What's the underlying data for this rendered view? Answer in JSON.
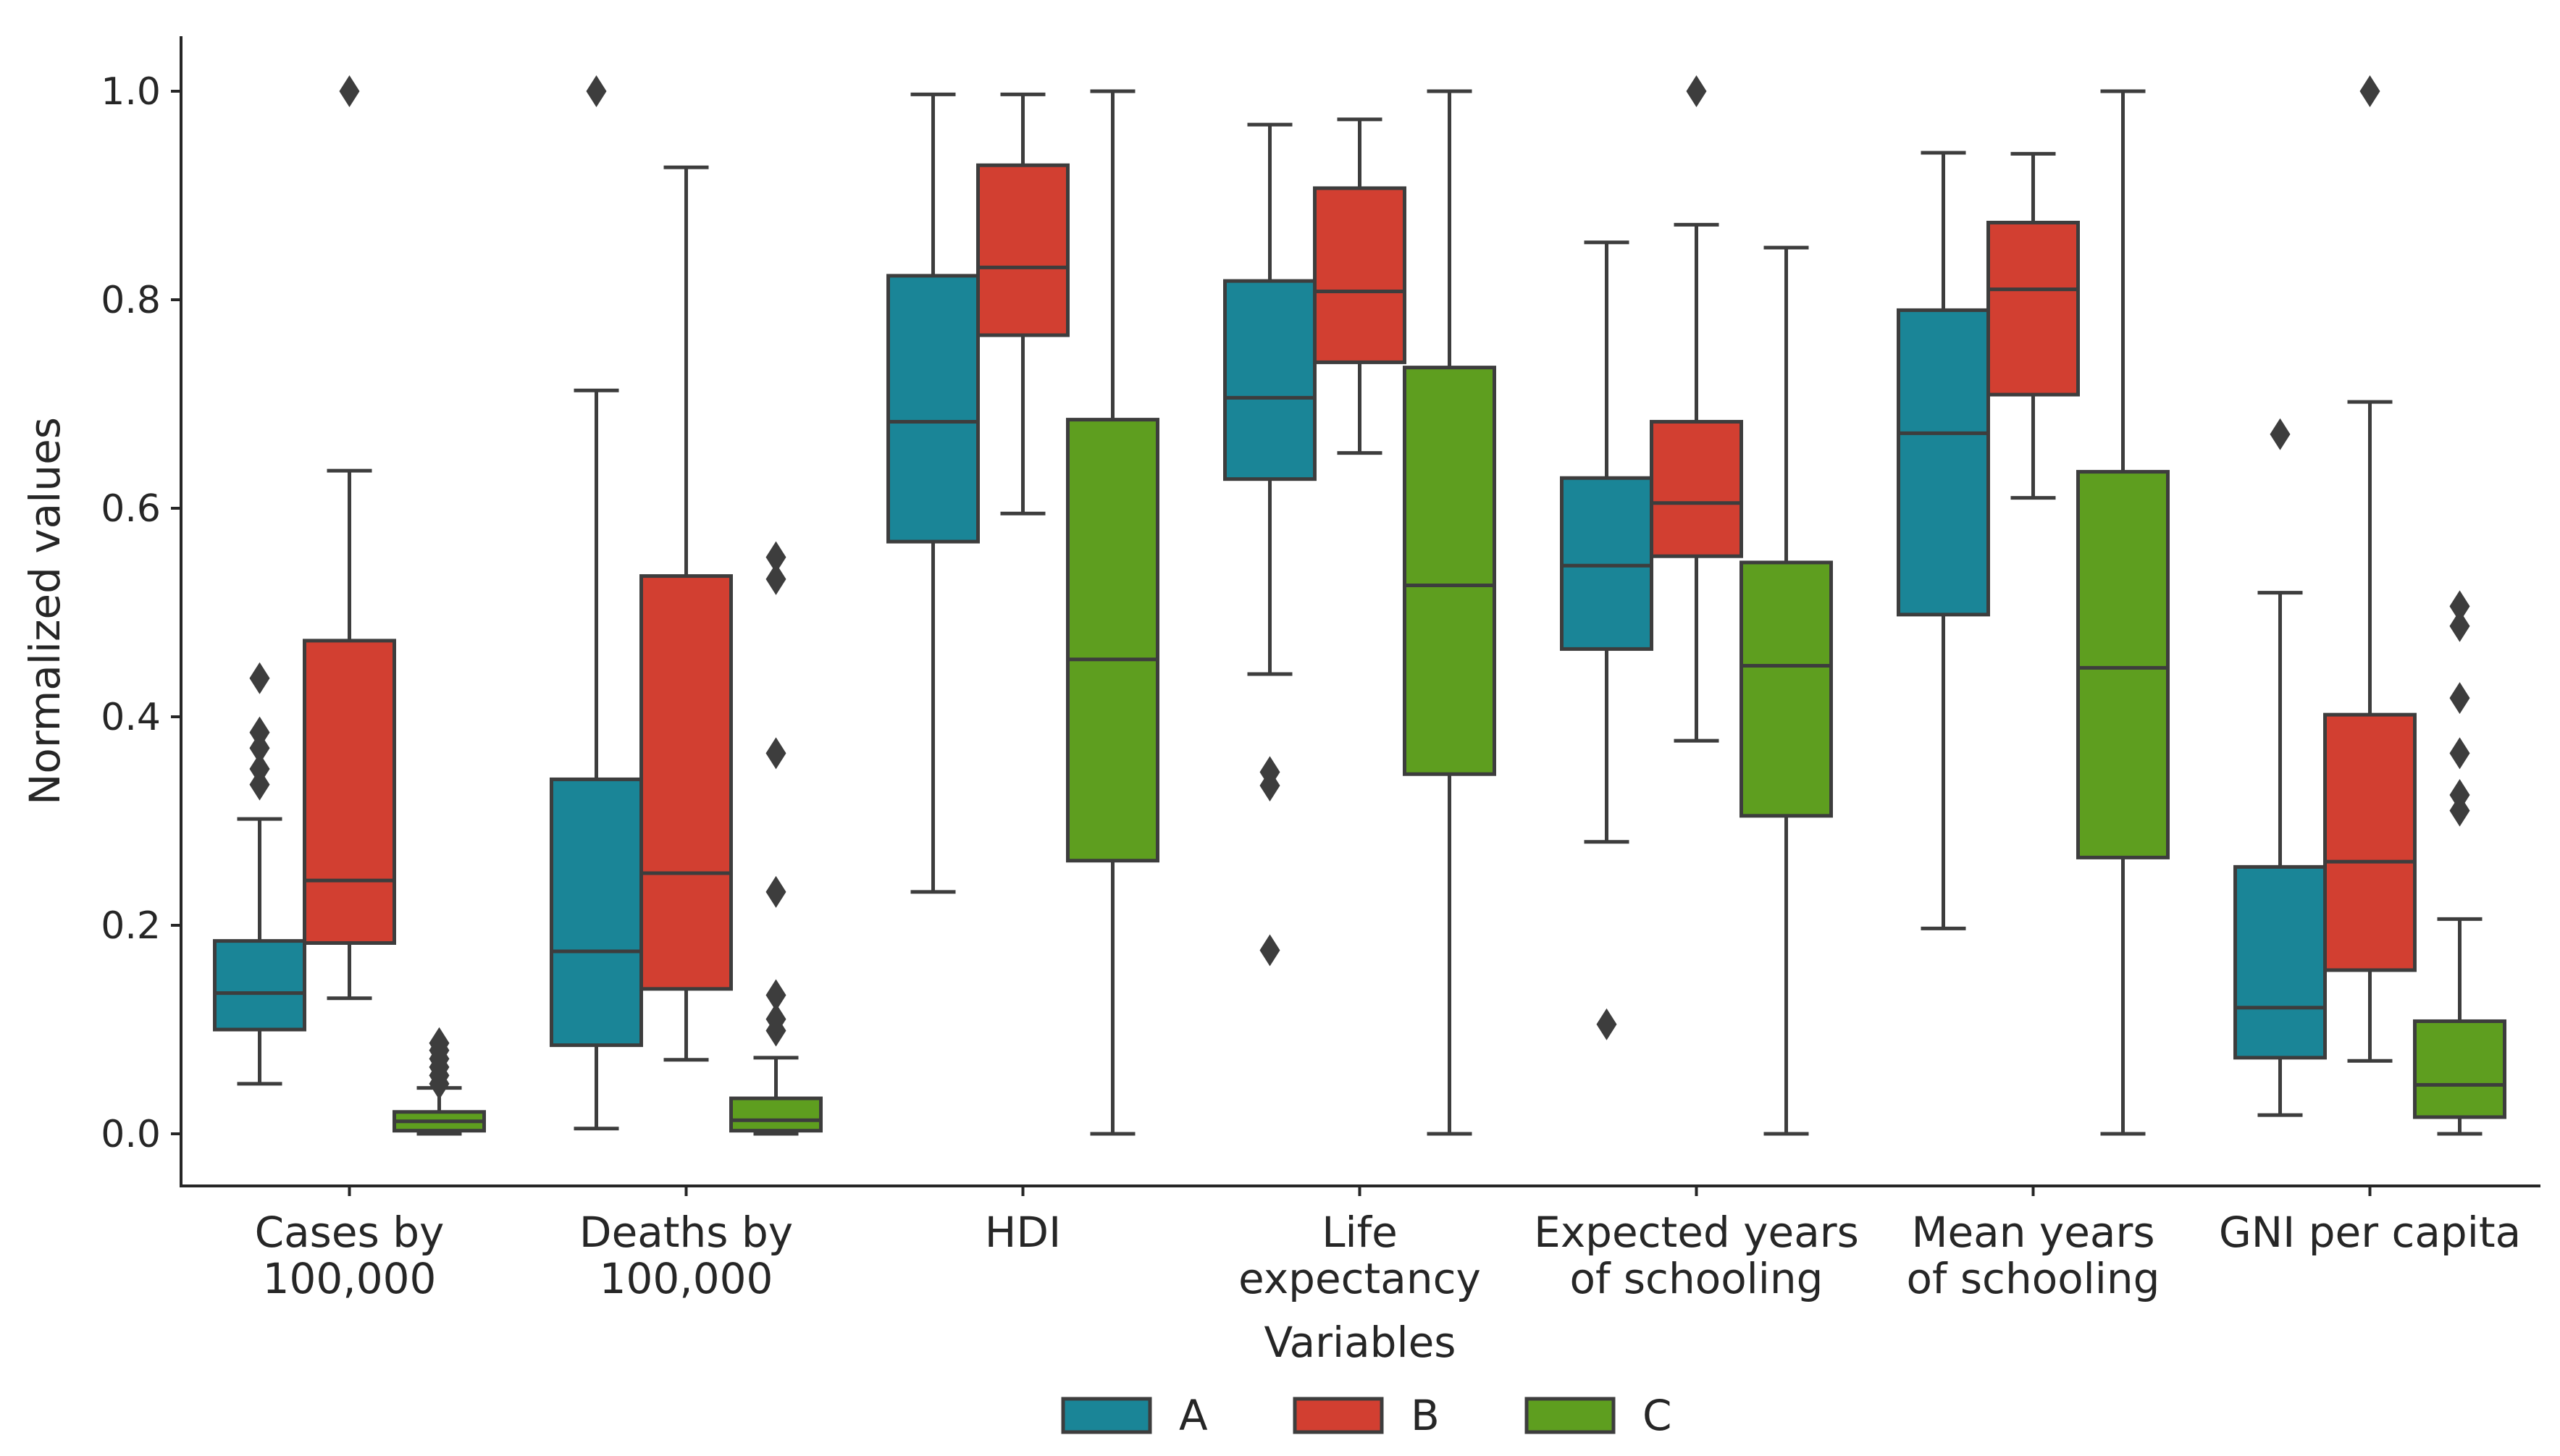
{
  "chart_data": {
    "type": "box",
    "ylabel": "Normalized values",
    "xlabel": "Variables",
    "ylim": [
      0.0,
      1.0
    ],
    "yticks": [
      0.0,
      0.2,
      0.4,
      0.6,
      0.8,
      1.0
    ],
    "ytick_labels": [
      "0.0",
      "0.2",
      "0.4",
      "0.6",
      "0.8",
      "1.0"
    ],
    "categories": [
      [
        "Cases by",
        "100,000"
      ],
      [
        "Deaths by",
        "100,000"
      ],
      [
        "HDI"
      ],
      [
        "Life",
        "expectancy"
      ],
      [
        "Expected years",
        "of schooling"
      ],
      [
        "Mean years",
        "of schooling"
      ],
      [
        "GNI per capita"
      ]
    ],
    "legend": {
      "placement": "bottom-center"
    },
    "series": [
      {
        "name": "A",
        "color": "#1a8597",
        "boxes": [
          {
            "whislo": 0.048,
            "q1": 0.1,
            "med": 0.135,
            "q3": 0.185,
            "whishi": 0.302,
            "fliers": [
              0.335,
              0.35,
              0.37,
              0.385,
              0.437
            ]
          },
          {
            "whislo": 0.005,
            "q1": 0.085,
            "med": 0.175,
            "q3": 0.34,
            "whishi": 0.713,
            "fliers": [
              1.0
            ]
          },
          {
            "whislo": 0.232,
            "q1": 0.568,
            "med": 0.683,
            "q3": 0.823,
            "whishi": 0.997,
            "fliers": []
          },
          {
            "whislo": 0.441,
            "q1": 0.628,
            "med": 0.706,
            "q3": 0.818,
            "whishi": 0.968,
            "fliers": [
              0.176,
              0.334,
              0.347
            ]
          },
          {
            "whislo": 0.28,
            "q1": 0.465,
            "med": 0.545,
            "q3": 0.629,
            "whishi": 0.855,
            "fliers": [
              0.105
            ]
          },
          {
            "whislo": 0.197,
            "q1": 0.498,
            "med": 0.672,
            "q3": 0.79,
            "whishi": 0.941,
            "fliers": []
          },
          {
            "whislo": 0.018,
            "q1": 0.073,
            "med": 0.121,
            "q3": 0.256,
            "whishi": 0.519,
            "fliers": [
              0.671
            ]
          }
        ]
      },
      {
        "name": "B",
        "color": "#d23f31",
        "boxes": [
          {
            "whislo": 0.13,
            "q1": 0.183,
            "med": 0.243,
            "q3": 0.473,
            "whishi": 0.636,
            "fliers": [
              1.0
            ]
          },
          {
            "whislo": 0.071,
            "q1": 0.139,
            "med": 0.25,
            "q3": 0.535,
            "whishi": 0.927,
            "fliers": []
          },
          {
            "whislo": 0.595,
            "q1": 0.766,
            "med": 0.831,
            "q3": 0.929,
            "whishi": 0.997,
            "fliers": []
          },
          {
            "whislo": 0.653,
            "q1": 0.74,
            "med": 0.808,
            "q3": 0.907,
            "whishi": 0.973,
            "fliers": []
          },
          {
            "whislo": 0.377,
            "q1": 0.554,
            "med": 0.605,
            "q3": 0.683,
            "whishi": 0.872,
            "fliers": [
              1.0
            ]
          },
          {
            "whislo": 0.61,
            "q1": 0.709,
            "med": 0.81,
            "q3": 0.874,
            "whishi": 0.94,
            "fliers": []
          },
          {
            "whislo": 0.07,
            "q1": 0.157,
            "med": 0.261,
            "q3": 0.402,
            "whishi": 0.702,
            "fliers": [
              1.0
            ]
          }
        ]
      },
      {
        "name": "C",
        "color": "#5e9e1f",
        "boxes": [
          {
            "whislo": 0.0,
            "q1": 0.003,
            "med": 0.012,
            "q3": 0.021,
            "whishi": 0.044,
            "fliers": [
              0.048,
              0.056,
              0.064,
              0.072,
              0.08,
              0.087
            ]
          },
          {
            "whislo": 0.0,
            "q1": 0.003,
            "med": 0.013,
            "q3": 0.034,
            "whishi": 0.073,
            "fliers": [
              0.099,
              0.11,
              0.133,
              0.232,
              0.365,
              0.532,
              0.553
            ]
          },
          {
            "whislo": 0.0,
            "q1": 0.262,
            "med": 0.455,
            "q3": 0.685,
            "whishi": 1.0,
            "fliers": []
          },
          {
            "whislo": 0.0,
            "q1": 0.345,
            "med": 0.526,
            "q3": 0.735,
            "whishi": 1.0,
            "fliers": []
          },
          {
            "whislo": 0.0,
            "q1": 0.305,
            "med": 0.449,
            "q3": 0.548,
            "whishi": 0.85,
            "fliers": []
          },
          {
            "whislo": 0.0,
            "q1": 0.265,
            "med": 0.447,
            "q3": 0.635,
            "whishi": 1.0,
            "fliers": []
          },
          {
            "whislo": 0.0,
            "q1": 0.016,
            "med": 0.047,
            "q3": 0.108,
            "whishi": 0.206,
            "fliers": [
              0.31,
              0.325,
              0.365,
              0.418,
              0.487,
              0.506
            ]
          }
        ]
      }
    ]
  }
}
